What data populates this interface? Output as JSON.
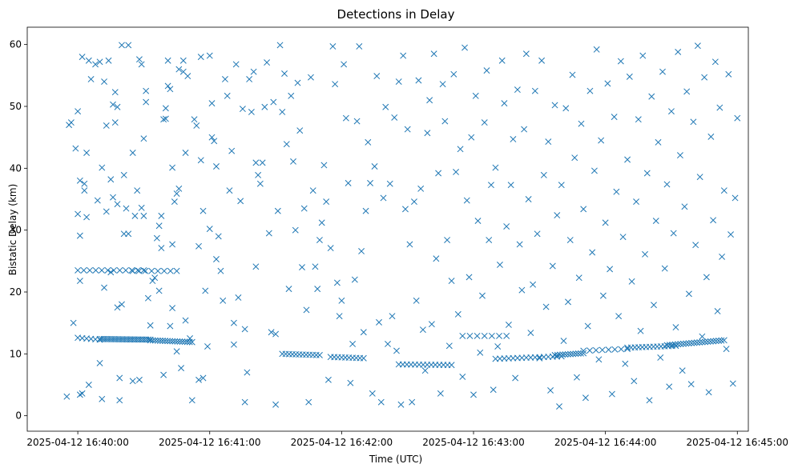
{
  "chart_data": {
    "type": "scatter",
    "title": "Detections in Delay",
    "xlabel": "Time (UTC)",
    "ylabel": "Bistatic Delay (km)",
    "marker": "x",
    "color": "#1f77b4",
    "xlim_seconds": [
      -23,
      305
    ],
    "ylim": [
      -2.5,
      62.8
    ],
    "x_ticks": [
      {
        "label": "2025-04-12 16:40:00",
        "seconds": 0
      },
      {
        "label": "2025-04-12 16:41:00",
        "seconds": 60
      },
      {
        "label": "2025-04-12 16:42:00",
        "seconds": 120
      },
      {
        "label": "2025-04-12 16:43:00",
        "seconds": 180
      },
      {
        "label": "2025-04-12 16:44:00",
        "seconds": 240
      },
      {
        "label": "2025-04-12 16:45:00",
        "seconds": 300
      }
    ],
    "y_ticks": [
      {
        "label": "0",
        "value": 0
      },
      {
        "label": "10",
        "value": 10
      },
      {
        "label": "20",
        "value": 20
      },
      {
        "label": "30",
        "value": 30
      },
      {
        "label": "40",
        "value": 40
      },
      {
        "label": "50",
        "value": 50
      },
      {
        "label": "60",
        "value": 60
      }
    ],
    "tracks": [
      {
        "name": "track-1",
        "x_start": 0,
        "x_end": 10,
        "y_start": 12.6,
        "y_end": 12.3,
        "count": 6
      },
      {
        "name": "track-2",
        "x_start": 0,
        "x_end": 30,
        "y_start": 23.5,
        "y_end": 23.5,
        "count": 12
      },
      {
        "name": "track-3",
        "x_start": 25,
        "x_end": 45,
        "y_start": 23.4,
        "y_end": 23.4,
        "count": 8
      },
      {
        "name": "track-4",
        "x_start": 10,
        "x_end": 33,
        "y_start": 12.4,
        "y_end": 12.3,
        "count": 26
      },
      {
        "name": "track-5",
        "x_start": 33,
        "x_end": 52,
        "y_start": 12.2,
        "y_end": 11.9,
        "count": 18
      },
      {
        "name": "track-6",
        "x_start": 93,
        "x_end": 110,
        "y_start": 10.0,
        "y_end": 9.8,
        "count": 12
      },
      {
        "name": "track-7",
        "x_start": 115,
        "x_end": 130,
        "y_start": 9.5,
        "y_end": 9.3,
        "count": 10
      },
      {
        "name": "track-8",
        "x_start": 146,
        "x_end": 170,
        "y_start": 8.3,
        "y_end": 8.2,
        "count": 14
      },
      {
        "name": "track-9",
        "x_start": 175,
        "x_end": 195,
        "y_start": 12.9,
        "y_end": 12.9,
        "count": 7
      },
      {
        "name": "track-10",
        "x_start": 190,
        "x_end": 220,
        "y_start": 9.2,
        "y_end": 9.6,
        "count": 16
      },
      {
        "name": "track-11",
        "x_start": 217,
        "x_end": 230,
        "y_start": 9.8,
        "y_end": 10.1,
        "count": 12
      },
      {
        "name": "track-12",
        "x_start": 230,
        "x_end": 250,
        "y_start": 10.5,
        "y_end": 10.8,
        "count": 8
      },
      {
        "name": "track-13",
        "x_start": 250,
        "x_end": 272,
        "y_start": 11.0,
        "y_end": 11.3,
        "count": 14
      },
      {
        "name": "track-14",
        "x_start": 268,
        "x_end": 294,
        "y_start": 11.4,
        "y_end": 12.2,
        "count": 22
      }
    ],
    "points": [
      [
        -5,
        3.1
      ],
      [
        -4,
        47
      ],
      [
        -3,
        47.4
      ],
      [
        -2,
        15
      ],
      [
        -1,
        43.2
      ],
      [
        0,
        49.2
      ],
      [
        0,
        32.6
      ],
      [
        1,
        29.1
      ],
      [
        1,
        21.8
      ],
      [
        1,
        3.4
      ],
      [
        2,
        3.6
      ],
      [
        1,
        38
      ],
      [
        2,
        58
      ],
      [
        3,
        37.5
      ],
      [
        3,
        36.4
      ],
      [
        4,
        42.5
      ],
      [
        4,
        32.1
      ],
      [
        5,
        57.4
      ],
      [
        5,
        5
      ],
      [
        6,
        54.4
      ],
      [
        8,
        56.8
      ],
      [
        9,
        34.8
      ],
      [
        10,
        57.2
      ],
      [
        10,
        8.5
      ],
      [
        11,
        40.1
      ],
      [
        11,
        2.7
      ],
      [
        12,
        54
      ],
      [
        12,
        20.7
      ],
      [
        13,
        46.9
      ],
      [
        13,
        33
      ],
      [
        14,
        57.4
      ],
      [
        15,
        38.2
      ],
      [
        15,
        23.2
      ],
      [
        16,
        50.3
      ],
      [
        16,
        35.3
      ],
      [
        17,
        52.3
      ],
      [
        17,
        47.4
      ],
      [
        18,
        49.9
      ],
      [
        18,
        34.2
      ],
      [
        18,
        17.5
      ],
      [
        19,
        6.1
      ],
      [
        19,
        2.5
      ],
      [
        20,
        59.9
      ],
      [
        20,
        18
      ],
      [
        21,
        38.9
      ],
      [
        21,
        29.4
      ],
      [
        22,
        33.5
      ],
      [
        23,
        59.9
      ],
      [
        23,
        29.4
      ],
      [
        25,
        42.5
      ],
      [
        25,
        5.6
      ],
      [
        26,
        32.3
      ],
      [
        27,
        36.4
      ],
      [
        28,
        57.6
      ],
      [
        28,
        5.8
      ],
      [
        29,
        56.8
      ],
      [
        29,
        33.6
      ],
      [
        30,
        44.8
      ],
      [
        30,
        32.3
      ],
      [
        31,
        52.5
      ],
      [
        31,
        50.7
      ],
      [
        32,
        19
      ],
      [
        33,
        14.6
      ],
      [
        34,
        21.8
      ],
      [
        35,
        22.3
      ],
      [
        36,
        28.7
      ],
      [
        37,
        30.7
      ],
      [
        37,
        20.2
      ],
      [
        38,
        32.3
      ],
      [
        38,
        27.1
      ],
      [
        39,
        47.9
      ],
      [
        39,
        6.6
      ],
      [
        40,
        49.7
      ],
      [
        40,
        48
      ],
      [
        41,
        57.4
      ],
      [
        41,
        53.3
      ],
      [
        42,
        52.8
      ],
      [
        42,
        14.5
      ],
      [
        43,
        40.1
      ],
      [
        43,
        27.7
      ],
      [
        43,
        17.4
      ],
      [
        44,
        34.6
      ],
      [
        45,
        35.9
      ],
      [
        45,
        10.4
      ],
      [
        46,
        56
      ],
      [
        46,
        36.7
      ],
      [
        47,
        7.7
      ],
      [
        48,
        57.4
      ],
      [
        48,
        55.6
      ],
      [
        49,
        42.5
      ],
      [
        49,
        15.4
      ],
      [
        50,
        54.9
      ],
      [
        51,
        12.5
      ],
      [
        52,
        2.5
      ],
      [
        53,
        47.9
      ],
      [
        54,
        46.9
      ],
      [
        55,
        5.8
      ],
      [
        55,
        27.4
      ],
      [
        56,
        58
      ],
      [
        56,
        41.3
      ],
      [
        57,
        33.1
      ],
      [
        57,
        6.1
      ],
      [
        58,
        20.2
      ],
      [
        59,
        11.2
      ],
      [
        60,
        58.2
      ],
      [
        60,
        30.2
      ],
      [
        61,
        50.5
      ],
      [
        61,
        45
      ],
      [
        62,
        44.4
      ],
      [
        63,
        40.3
      ],
      [
        63,
        25.3
      ],
      [
        64,
        29
      ],
      [
        65,
        23.4
      ],
      [
        66,
        18.6
      ],
      [
        67,
        54.4
      ],
      [
        68,
        51.7
      ],
      [
        69,
        36.4
      ],
      [
        70,
        42.8
      ],
      [
        71,
        11.5
      ],
      [
        71,
        15
      ],
      [
        72,
        56.8
      ],
      [
        73,
        19.1
      ],
      [
        74,
        34.7
      ],
      [
        75,
        49.6
      ],
      [
        76,
        14
      ],
      [
        76,
        2.2
      ],
      [
        77,
        7
      ],
      [
        78,
        54.4
      ],
      [
        79,
        49.1
      ],
      [
        80,
        55.6
      ],
      [
        81,
        40.9
      ],
      [
        81,
        24.1
      ],
      [
        82,
        38.9
      ],
      [
        83,
        37.5
      ],
      [
        84,
        40.9
      ],
      [
        85,
        49.9
      ],
      [
        86,
        57.1
      ],
      [
        87,
        29.5
      ],
      [
        88,
        13.5
      ],
      [
        89,
        50.7
      ],
      [
        90,
        13.2
      ],
      [
        90,
        1.8
      ],
      [
        91,
        33.1
      ],
      [
        92,
        59.9
      ],
      [
        93,
        49.1
      ],
      [
        94,
        55.3
      ],
      [
        95,
        43.9
      ],
      [
        96,
        20.5
      ],
      [
        97,
        51.7
      ],
      [
        98,
        41.1
      ],
      [
        99,
        30
      ],
      [
        100,
        53.8
      ],
      [
        101,
        46.1
      ],
      [
        102,
        24
      ],
      [
        103,
        33.5
      ],
      [
        104,
        17.1
      ],
      [
        105,
        2.2
      ],
      [
        106,
        54.7
      ],
      [
        107,
        36.4
      ],
      [
        108,
        24.1
      ],
      [
        109,
        20.5
      ],
      [
        110,
        28.4
      ],
      [
        111,
        31.2
      ],
      [
        112,
        40.5
      ],
      [
        113,
        34.6
      ],
      [
        114,
        5.8
      ],
      [
        115,
        27.1
      ],
      [
        116,
        59.7
      ],
      [
        117,
        53.6
      ],
      [
        118,
        21.5
      ],
      [
        119,
        16.1
      ],
      [
        120,
        18.6
      ],
      [
        121,
        56.8
      ],
      [
        122,
        48.1
      ],
      [
        123,
        37.6
      ],
      [
        124,
        5.3
      ],
      [
        125,
        11.6
      ],
      [
        126,
        22
      ],
      [
        127,
        47.6
      ],
      [
        128,
        59.7
      ],
      [
        129,
        26.6
      ],
      [
        130,
        13.5
      ],
      [
        131,
        33.1
      ],
      [
        132,
        44.2
      ],
      [
        133,
        37.6
      ],
      [
        134,
        3.6
      ],
      [
        135,
        40.3
      ],
      [
        136,
        54.9
      ],
      [
        137,
        15.1
      ],
      [
        138,
        2.2
      ],
      [
        139,
        35.2
      ],
      [
        140,
        49.9
      ],
      [
        141,
        11.6
      ],
      [
        142,
        37.5
      ],
      [
        143,
        16.1
      ],
      [
        144,
        48.2
      ],
      [
        145,
        10.5
      ],
      [
        146,
        54
      ],
      [
        147,
        1.8
      ],
      [
        148,
        58.2
      ],
      [
        149,
        33.4
      ],
      [
        150,
        46.3
      ],
      [
        151,
        27.7
      ],
      [
        152,
        2.2
      ],
      [
        153,
        34.6
      ],
      [
        154,
        18.6
      ],
      [
        155,
        54.2
      ],
      [
        156,
        36.7
      ],
      [
        157,
        13.9
      ],
      [
        158,
        7.3
      ],
      [
        159,
        45.7
      ],
      [
        160,
        51
      ],
      [
        161,
        14.8
      ],
      [
        162,
        58.5
      ],
      [
        163,
        25.4
      ],
      [
        164,
        39.2
      ],
      [
        165,
        3.6
      ],
      [
        166,
        53.6
      ],
      [
        167,
        47.6
      ],
      [
        168,
        28.4
      ],
      [
        169,
        11.3
      ],
      [
        170,
        21.8
      ],
      [
        171,
        55.2
      ],
      [
        172,
        39.4
      ],
      [
        173,
        16.4
      ],
      [
        174,
        43.1
      ],
      [
        175,
        6.3
      ],
      [
        176,
        59.5
      ],
      [
        177,
        34.8
      ],
      [
        178,
        22.4
      ],
      [
        179,
        45
      ],
      [
        180,
        3.4
      ],
      [
        181,
        51.7
      ],
      [
        182,
        31.5
      ],
      [
        183,
        10.2
      ],
      [
        184,
        19.4
      ],
      [
        185,
        47.4
      ],
      [
        186,
        55.8
      ],
      [
        187,
        28.4
      ],
      [
        188,
        37.3
      ],
      [
        189,
        4.2
      ],
      [
        190,
        40.1
      ],
      [
        191,
        11.2
      ],
      [
        192,
        24.4
      ],
      [
        193,
        57.4
      ],
      [
        194,
        50.5
      ],
      [
        195,
        30.6
      ],
      [
        196,
        14.7
      ],
      [
        197,
        37.3
      ],
      [
        198,
        44.7
      ],
      [
        199,
        6.1
      ],
      [
        200,
        52.7
      ],
      [
        201,
        27.7
      ],
      [
        202,
        20.3
      ],
      [
        203,
        46.3
      ],
      [
        204,
        58.5
      ],
      [
        205,
        35
      ],
      [
        206,
        13.4
      ],
      [
        207,
        21.2
      ],
      [
        208,
        52.5
      ],
      [
        209,
        29.4
      ],
      [
        210,
        9.3
      ],
      [
        211,
        57.4
      ],
      [
        212,
        38.9
      ],
      [
        213,
        17.6
      ],
      [
        214,
        44.3
      ],
      [
        215,
        4.1
      ],
      [
        216,
        24.2
      ],
      [
        217,
        50.2
      ],
      [
        218,
        32.4
      ],
      [
        219,
        1.5
      ],
      [
        220,
        37.3
      ],
      [
        221,
        12.1
      ],
      [
        222,
        49.7
      ],
      [
        223,
        18.4
      ],
      [
        224,
        28.4
      ],
      [
        225,
        55.1
      ],
      [
        226,
        41.7
      ],
      [
        227,
        6.2
      ],
      [
        228,
        22.3
      ],
      [
        229,
        47.2
      ],
      [
        230,
        33.4
      ],
      [
        231,
        2.9
      ],
      [
        232,
        14.5
      ],
      [
        233,
        52.5
      ],
      [
        234,
        26.4
      ],
      [
        235,
        39.6
      ],
      [
        236,
        59.2
      ],
      [
        237,
        9.1
      ],
      [
        238,
        44.5
      ],
      [
        239,
        19.4
      ],
      [
        240,
        31.2
      ],
      [
        241,
        53.7
      ],
      [
        242,
        23.7
      ],
      [
        243,
        3.5
      ],
      [
        244,
        48.3
      ],
      [
        245,
        36.2
      ],
      [
        246,
        16.1
      ],
      [
        247,
        57.3
      ],
      [
        248,
        28.9
      ],
      [
        249,
        8.4
      ],
      [
        250,
        41.4
      ],
      [
        251,
        54.8
      ],
      [
        252,
        21.7
      ],
      [
        253,
        5.6
      ],
      [
        254,
        34.6
      ],
      [
        255,
        47.9
      ],
      [
        256,
        13.7
      ],
      [
        257,
        58.2
      ],
      [
        258,
        26.1
      ],
      [
        259,
        39.2
      ],
      [
        260,
        2.5
      ],
      [
        261,
        51.6
      ],
      [
        262,
        17.9
      ],
      [
        263,
        31.5
      ],
      [
        264,
        44.2
      ],
      [
        265,
        9.4
      ],
      [
        266,
        55.6
      ],
      [
        267,
        23.8
      ],
      [
        268,
        37.4
      ],
      [
        269,
        4.7
      ],
      [
        270,
        49.2
      ],
      [
        271,
        29.5
      ],
      [
        272,
        14.3
      ],
      [
        273,
        58.8
      ],
      [
        274,
        42.1
      ],
      [
        275,
        7.3
      ],
      [
        276,
        33.8
      ],
      [
        277,
        52.4
      ],
      [
        278,
        19.7
      ],
      [
        279,
        5.1
      ],
      [
        280,
        47.5
      ],
      [
        281,
        27.6
      ],
      [
        282,
        59.8
      ],
      [
        283,
        38.6
      ],
      [
        284,
        12.8
      ],
      [
        285,
        54.7
      ],
      [
        286,
        22.4
      ],
      [
        287,
        3.8
      ],
      [
        288,
        45.1
      ],
      [
        289,
        31.6
      ],
      [
        290,
        57.2
      ],
      [
        291,
        16.9
      ],
      [
        292,
        49.8
      ],
      [
        293,
        25.7
      ],
      [
        294,
        36.4
      ],
      [
        295,
        10.8
      ],
      [
        296,
        55.2
      ],
      [
        297,
        29.3
      ],
      [
        298,
        5.2
      ],
      [
        299,
        35.2
      ],
      [
        300,
        48.1
      ]
    ]
  }
}
